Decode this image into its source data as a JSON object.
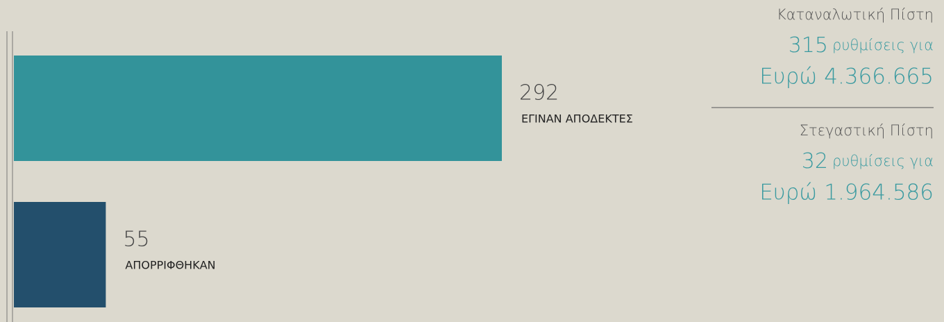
{
  "chart_data": {
    "type": "bar",
    "orientation": "horizontal",
    "categories": [
      "ΕΓΙΝΑΝ ΑΠΟΔΕΚΤΕΣ",
      "ΑΠΟΡΡΙΦΘΗΚΑΝ"
    ],
    "values": [
      292,
      55
    ],
    "colors": [
      "#33939a",
      "#234f6c"
    ]
  },
  "panel": [
    {
      "title": "Καταναλωτική Πίστη",
      "count": 315,
      "count_text": "ρυθμίσεις για",
      "amount": "Ευρώ 4.366.665"
    },
    {
      "title": "Στεγαστική Πίστη",
      "count": 32,
      "count_text": "ρυθμίσεις για",
      "amount": "Ευρώ 1.964.586"
    }
  ]
}
